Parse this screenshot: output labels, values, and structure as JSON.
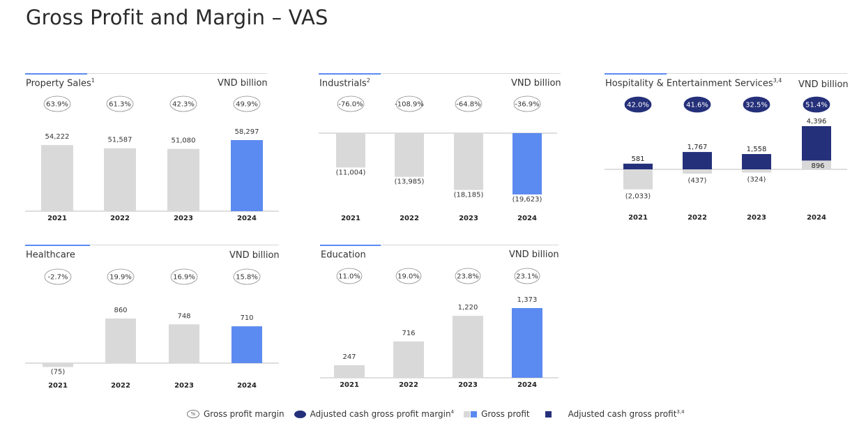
{
  "title": "Gross Profit and Margin – VAS",
  "legend": {
    "gpm": "Gross profit margin",
    "gpm_symbol": "%",
    "acgpm": "Adjusted cash gross profit margin",
    "acgpm_sup": "4",
    "gp": "Gross profit",
    "acgp": "Adjusted cash gross profit",
    "acgp_sup": "3,4"
  },
  "colors": {
    "gray": "#d9d9d9",
    "blue": "#5b8af0",
    "navy": "#25307a",
    "accent": "#5b8af0"
  },
  "chart_data": [
    {
      "id": "property",
      "type": "bar",
      "title": "Property Sales",
      "title_sup": "1",
      "unit": "VND billion",
      "categories": [
        "2021",
        "2022",
        "2023",
        "2024"
      ],
      "values": [
        54222,
        51587,
        51080,
        58297
      ],
      "labels": [
        "54,222",
        "51,587",
        "51,080",
        "58,297"
      ],
      "highlight": "2024",
      "margins": [
        "63.9%",
        "61.3%",
        "42.3%",
        "49.9%"
      ],
      "margin_style": "outline"
    },
    {
      "id": "industrials",
      "type": "bar",
      "title": "Industrials",
      "title_sup": "2",
      "unit": "VND billion",
      "categories": [
        "2021",
        "2022",
        "2023",
        "2024"
      ],
      "values": [
        -11004,
        -13985,
        -18185,
        -19623
      ],
      "labels": [
        "(11,004)",
        "(13,985)",
        "(18,185)",
        "(19,623)"
      ],
      "highlight": "2024",
      "margins": [
        "-76.0%",
        "-108.9%",
        "-64.8%",
        "-36.9%"
      ],
      "margin_style": "outline"
    },
    {
      "id": "hospitality",
      "type": "bar",
      "title": "Hospitality & Entertainment Services",
      "title_sup": "3,4",
      "unit": "VND billion",
      "categories": [
        "2021",
        "2022",
        "2023",
        "2024"
      ],
      "series": [
        {
          "name": "Gross profit",
          "values": [
            -2033,
            -437,
            -324,
            896
          ],
          "labels": [
            "(2,033)",
            "(437)",
            "(324)",
            "896"
          ]
        },
        {
          "name": "Adjusted cash gross profit",
          "values": [
            581,
            1767,
            1558,
            4396
          ],
          "labels": [
            "581",
            "1,767",
            "1,558",
            "4,396"
          ]
        }
      ],
      "margins": [
        "42.0%",
        "41.6%",
        "32.5%",
        "51.4%"
      ],
      "margin_style": "filled"
    },
    {
      "id": "healthcare",
      "type": "bar",
      "title": "Healthcare",
      "title_sup": "",
      "unit": "VND billion",
      "categories": [
        "2021",
        "2022",
        "2023",
        "2024"
      ],
      "values": [
        -75,
        860,
        748,
        710
      ],
      "labels": [
        "(75)",
        "860",
        "748",
        "710"
      ],
      "highlight": "2024",
      "margins": [
        "-2.7%",
        "19.9%",
        "16.9%",
        "15.8%"
      ],
      "margin_style": "outline"
    },
    {
      "id": "education",
      "type": "bar",
      "title": "Education",
      "title_sup": "",
      "unit": "VND billion",
      "categories": [
        "2021",
        "2022",
        "2023",
        "2024"
      ],
      "values": [
        247,
        716,
        1220,
        1373
      ],
      "labels": [
        "247",
        "716",
        "1,220",
        "1,373"
      ],
      "highlight": "2024",
      "margins": [
        "11.0%",
        "19.0%",
        "23.8%",
        "23.1%"
      ],
      "margin_style": "outline"
    }
  ]
}
